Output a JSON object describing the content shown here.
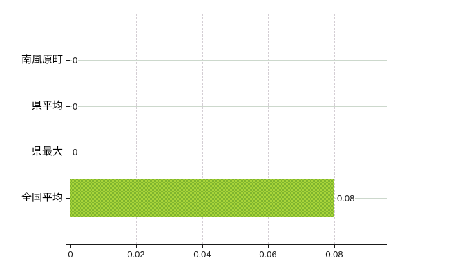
{
  "chart_data": {
    "type": "bar",
    "orientation": "horizontal",
    "title": "",
    "categories": [
      "南風原町",
      "県平均",
      "県最大",
      "全国平均"
    ],
    "values": [
      0,
      0,
      0,
      0.08
    ],
    "value_labels": [
      "0",
      "0",
      "0",
      "0.08"
    ],
    "x_ticks": [
      0,
      0.02,
      0.04,
      0.06,
      0.08
    ],
    "x_tick_labels": [
      "0",
      "0.02",
      "0.04",
      "0.06",
      "0.08"
    ],
    "xlim": [
      0,
      0.096
    ],
    "grid": true,
    "legend": "none",
    "colors": {
      "bar_checker_dark": "#7fb42e",
      "bar_checker_light": "#a8d43a",
      "axis": "#1a1a1a",
      "text": "#1a1a1a",
      "h_gridline": "#ccd8cc",
      "v_gridline": "#d4ced4",
      "top_border": "#cfc9cf",
      "background": "#ffffff"
    }
  }
}
